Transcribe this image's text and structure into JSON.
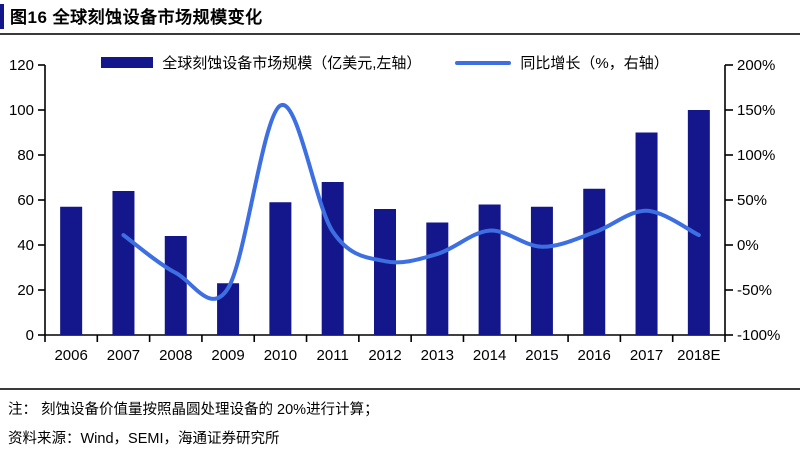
{
  "title": "图16 全球刻蚀设备市场规模变化",
  "legend": [
    {
      "label": "全球刻蚀设备市场规模（亿美元,左轴）",
      "marker": "bar-swatch",
      "color": "#14178C"
    },
    {
      "label": "同比增长（%，右轴）",
      "marker": "line-swatch",
      "color": "#3D6FE3"
    }
  ],
  "footer": {
    "note": "注：  刻蚀设备价值量按照晶圆处理设备的 20%进行计算；",
    "source": "资料来源：Wind，SEMI，海通证券研究所"
  },
  "chart_data": {
    "type": "bar",
    "categories": [
      "2006",
      "2007",
      "2008",
      "2009",
      "2010",
      "2011",
      "2012",
      "2013",
      "2014",
      "2015",
      "2016",
      "2017",
      "2018E"
    ],
    "series": [
      {
        "name": "全球刻蚀设备市场规模（亿美元,左轴）",
        "type": "bar",
        "axis": "left",
        "color": "#14178C",
        "values": [
          57,
          64,
          44,
          23,
          59,
          68,
          56,
          50,
          58,
          57,
          65,
          90,
          100
        ]
      },
      {
        "name": "同比增长（%，右轴）",
        "type": "line",
        "axis": "right",
        "color": "#3D6FE3",
        "values": [
          null,
          11,
          -31,
          -48,
          155,
          15,
          -18,
          -10,
          16,
          -2,
          14,
          38,
          11
        ]
      }
    ],
    "left_axis": {
      "label": "亿美元",
      "min": 0,
      "max": 120,
      "ticks": [
        "0",
        "20",
        "40",
        "60",
        "80",
        "100",
        "120"
      ]
    },
    "right_axis": {
      "label": "%",
      "min": -100,
      "max": 200,
      "ticks": [
        "-100%",
        "-50%",
        "0%",
        "50%",
        "100%",
        "150%",
        "200%"
      ]
    },
    "grid": false,
    "legend_position": "top"
  }
}
